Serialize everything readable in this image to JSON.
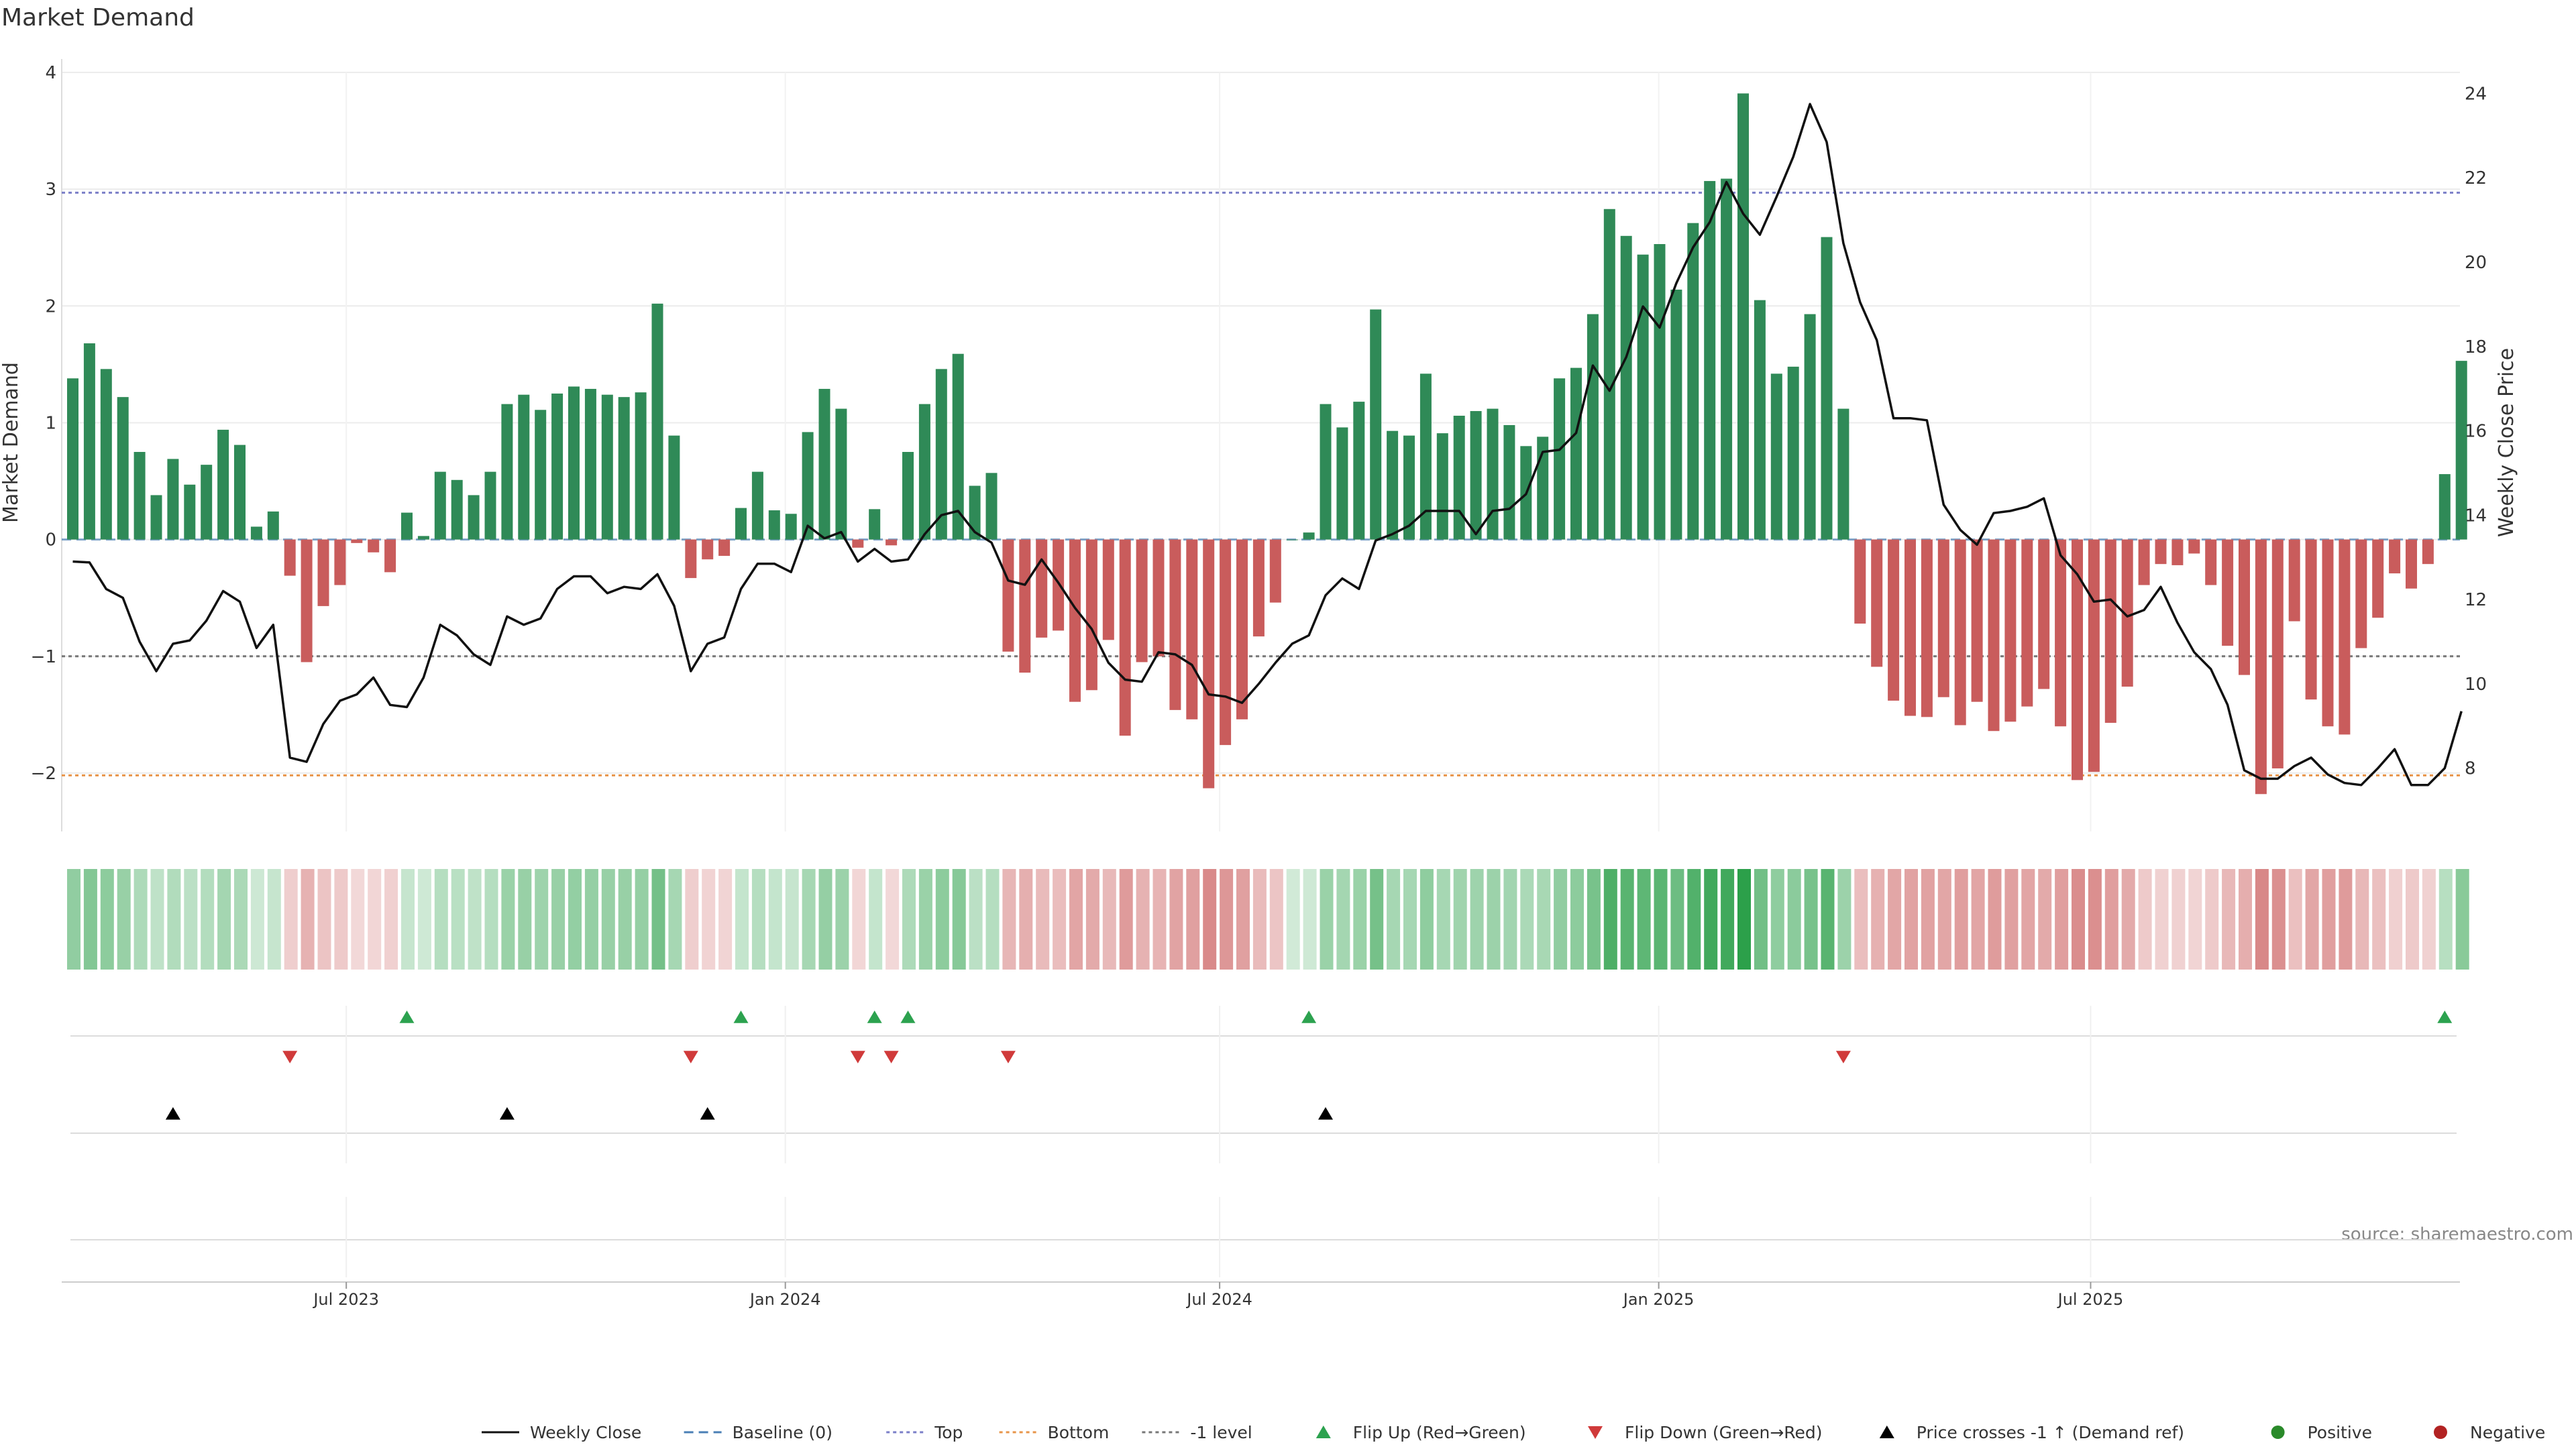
{
  "chart_data": {
    "type": "bar",
    "title": "Market Demand",
    "source": "source: sharemaestro.com",
    "start_date": "2023-03-06",
    "step_days": 7,
    "left_axis": {
      "label": "Market Demand",
      "ylim": [
        -2.5,
        4
      ],
      "ticks": [
        4,
        3,
        2,
        1,
        0,
        -1,
        -2
      ]
    },
    "right_axis": {
      "label": "Weekly Close Price",
      "ylim": [
        6.5,
        24.5
      ],
      "ticks": [
        24,
        22,
        20,
        18,
        16,
        14,
        12,
        10,
        8
      ]
    },
    "x_ticks": [
      {
        "label": "Jul 2023",
        "date": "2023-07-01"
      },
      {
        "label": "Jan 2024",
        "date": "2024-01-01"
      },
      {
        "label": "Jul 2024",
        "date": "2024-07-01"
      },
      {
        "label": "Jan 2025",
        "date": "2025-01-01"
      },
      {
        "label": "Jul 2025",
        "date": "2025-07-01"
      }
    ],
    "reference_lines": [
      {
        "name": "Top",
        "value": 2.97,
        "color": "#7b7fc8",
        "style": "dotted"
      },
      {
        "name": "-1 level",
        "value": -1.0,
        "color": "#777777",
        "style": "dotted"
      },
      {
        "name": "Bottom",
        "value": -2.02,
        "color": "#e8954a",
        "style": "dotted"
      },
      {
        "name": "Baseline (0)",
        "value": 0,
        "color": "#6a9bc8",
        "style": "dashed"
      }
    ],
    "demand": [
      1.38,
      1.68,
      1.46,
      1.22,
      0.75,
      0.38,
      0.69,
      0.47,
      0.64,
      0.94,
      0.81,
      0.11,
      0.24,
      -0.31,
      -1.05,
      -0.57,
      -0.39,
      -0.03,
      -0.11,
      -0.28,
      0.23,
      0.03,
      0.58,
      0.51,
      0.38,
      0.58,
      1.16,
      1.24,
      1.11,
      1.25,
      1.31,
      1.29,
      1.24,
      1.22,
      1.26,
      2.02,
      0.89,
      -0.33,
      -0.17,
      -0.14,
      0.27,
      0.58,
      0.25,
      0.22,
      0.92,
      1.29,
      1.12,
      -0.07,
      0.26,
      -0.05,
      0.75,
      1.16,
      1.46,
      1.59,
      0.46,
      0.57,
      -0.96,
      -1.14,
      -0.84,
      -0.78,
      -1.39,
      -1.29,
      -0.86,
      -1.68,
      -1.05,
      -1.0,
      -1.46,
      -1.54,
      -2.13,
      -1.76,
      -1.54,
      -0.83,
      -0.54,
      0.0,
      0.06,
      1.16,
      0.96,
      1.18,
      1.97,
      0.93,
      0.89,
      1.42,
      0.91,
      1.06,
      1.1,
      1.12,
      0.98,
      0.8,
      0.88,
      1.38,
      1.47,
      1.93,
      2.83,
      2.6,
      2.44,
      2.53,
      2.14,
      2.71,
      3.07,
      3.09,
      3.82,
      2.05,
      1.42,
      1.48,
      1.93,
      2.59,
      1.12,
      -0.72,
      -1.09,
      -1.38,
      -1.51,
      -1.52,
      -1.35,
      -1.59,
      -1.39,
      -1.64,
      -1.56,
      -1.43,
      -1.28,
      -1.6,
      -2.06,
      -1.99,
      -1.57,
      -1.26,
      -0.39,
      -0.21,
      -0.22,
      -0.12,
      -0.39,
      -0.91,
      -1.16,
      -2.18,
      -1.96,
      -0.7,
      -1.37,
      -1.6,
      -1.67,
      -0.93,
      -0.67,
      -0.29,
      -0.42,
      -0.21,
      0.56,
      1.53
    ],
    "weekly_close": [
      12.9,
      12.88,
      12.25,
      12.04,
      11.0,
      10.3,
      10.95,
      11.03,
      11.5,
      12.2,
      11.95,
      10.85,
      11.4,
      8.25,
      8.15,
      9.05,
      9.6,
      9.75,
      10.15,
      9.5,
      9.45,
      10.15,
      11.4,
      11.15,
      10.7,
      10.45,
      11.6,
      11.4,
      11.55,
      12.25,
      12.55,
      12.55,
      12.15,
      12.3,
      12.25,
      12.6,
      11.85,
      10.3,
      10.95,
      11.1,
      12.25,
      12.85,
      12.85,
      12.65,
      13.75,
      13.45,
      13.6,
      12.9,
      13.2,
      12.9,
      12.95,
      13.55,
      14.0,
      14.1,
      13.6,
      13.35,
      12.45,
      12.35,
      12.95,
      12.4,
      11.8,
      11.3,
      10.5,
      10.1,
      10.05,
      10.75,
      10.7,
      10.45,
      9.75,
      9.7,
      9.55,
      10.0,
      10.5,
      10.95,
      11.15,
      12.1,
      12.5,
      12.25,
      13.4,
      13.55,
      13.75,
      14.1,
      14.1,
      14.1,
      13.55,
      14.1,
      14.15,
      14.5,
      15.5,
      15.55,
      15.95,
      17.55,
      16.95,
      17.75,
      18.95,
      18.45,
      19.5,
      20.35,
      20.95,
      21.9,
      21.15,
      20.65,
      21.55,
      22.5,
      23.75,
      22.85,
      20.45,
      19.05,
      18.15,
      16.3,
      16.3,
      16.25,
      14.25,
      13.65,
      13.3,
      14.05,
      14.1,
      14.2,
      14.4,
      13.05,
      12.6,
      11.95,
      12.0,
      11.6,
      11.75,
      12.3,
      11.45,
      10.75,
      10.35,
      9.5,
      7.95,
      7.75,
      7.75,
      8.05,
      8.25,
      7.85,
      7.65,
      7.6,
      8.0,
      8.45,
      7.6,
      7.6,
      8.0,
      9.35
    ],
    "flip_up_weeks": [
      20,
      40,
      48,
      50,
      74,
      142
    ],
    "flip_down_weeks": [
      13,
      37,
      47,
      49,
      56,
      106
    ],
    "price_cross_weeks": [
      6,
      26,
      38,
      75
    ]
  },
  "legend": {
    "items": [
      {
        "label": "Weekly Close",
        "symbol": "solid-line",
        "color": "#111111"
      },
      {
        "label": "Baseline (0)",
        "symbol": "dashed-line",
        "color": "#4a7fb5"
      },
      {
        "label": "Top",
        "symbol": "dotted-line",
        "color": "#7b7fc8"
      },
      {
        "label": "Bottom",
        "symbol": "dotted-line",
        "color": "#e8954a"
      },
      {
        "label": "-1 level",
        "symbol": "dotted-line",
        "color": "#777777"
      },
      {
        "label": "Flip Up (Red→Green)",
        "symbol": "triangle-up",
        "color": "#2ca24f"
      },
      {
        "label": "Flip Down (Green→Red)",
        "symbol": "triangle-down",
        "color": "#d03a3a"
      },
      {
        "label": "Price crosses -1 ↑ (Demand ref)",
        "symbol": "triangle-up",
        "color": "#000000"
      },
      {
        "label": "Positive",
        "symbol": "dot",
        "color": "#2a8a2a"
      },
      {
        "label": "Negative",
        "symbol": "dot",
        "color": "#b22222"
      }
    ]
  },
  "colors": {
    "positive_bar": "#2f8a57",
    "negative_bar": "#c95c5c",
    "price_line": "#111111",
    "heat_pos_rgb": [
      44,
      160,
      74
    ],
    "heat_neg_rgb": [
      200,
      85,
      85
    ]
  }
}
